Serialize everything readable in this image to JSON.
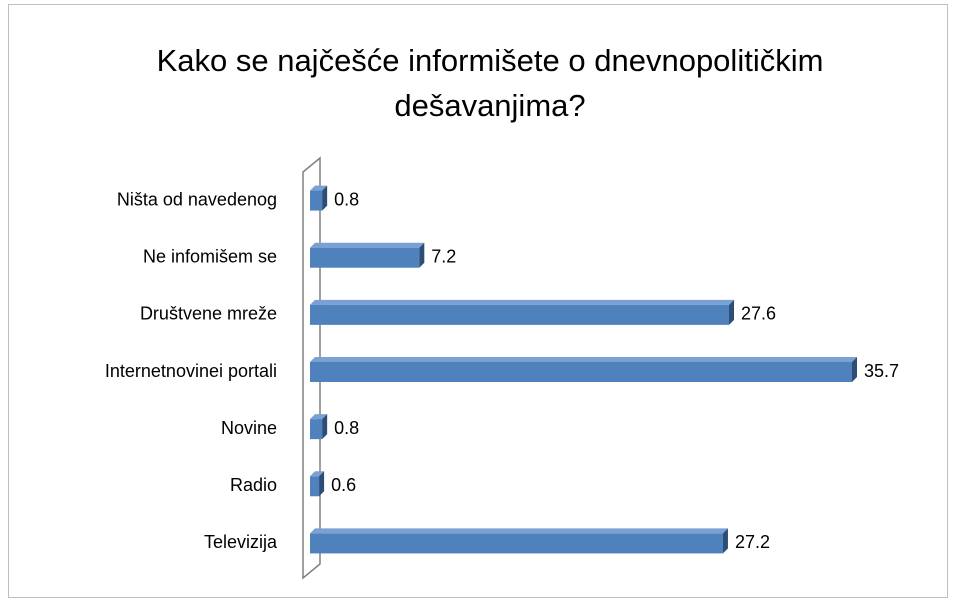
{
  "chart_data": {
    "type": "bar",
    "orientation": "horizontal",
    "title": "Kako se najčešće informišete o dnevnopolitičkim dešavanjima?",
    "categories": [
      "Ništa od navedenog",
      "Ne infomišem se",
      "Društvene mreže",
      "Internetnovinei portali",
      "Novine",
      "Radio",
      "Televizija"
    ],
    "values": [
      0.8,
      7.2,
      27.6,
      35.7,
      0.8,
      0.6,
      27.2
    ],
    "color": "#4f81bd"
  }
}
